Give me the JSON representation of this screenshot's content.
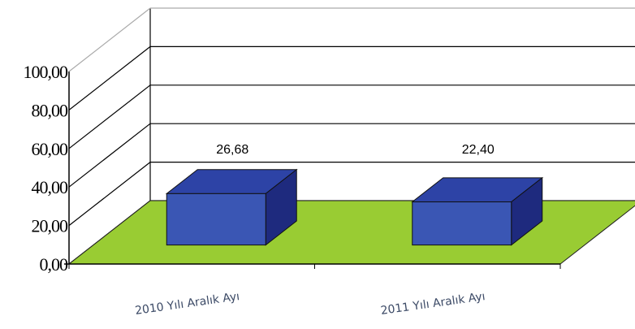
{
  "chart_data": {
    "type": "bar3d",
    "categories": [
      "2010 Yılı Aralık Ayı",
      "2011 Yılı Aralık Ayı"
    ],
    "values": [
      26.68,
      22.4
    ],
    "value_labels": [
      "26,68",
      "22,40"
    ],
    "color": "#3a56b4",
    "floor_color": "#99cc33",
    "ylim": [
      0,
      100
    ],
    "yticks": [
      {
        "value": 0,
        "label": "0,00"
      },
      {
        "value": 20,
        "label": "20,00"
      },
      {
        "value": 40,
        "label": "40,00"
      },
      {
        "value": 60,
        "label": "60,00"
      },
      {
        "value": 80,
        "label": "80,00"
      },
      {
        "value": 100,
        "label": "100,00"
      }
    ],
    "grid": true
  }
}
